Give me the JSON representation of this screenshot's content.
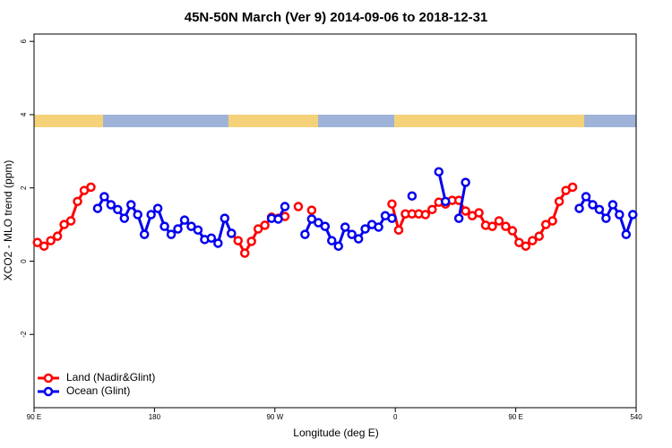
{
  "chart_data": {
    "type": "line",
    "title": "45N-50N March (Ver 9)   2014-09-06 to 2018-12-31",
    "xlabel": "Longitude (deg E)",
    "ylabel": "XCO2 - MLO trend (ppm)",
    "x": [
      92.5,
      97.5,
      102.5,
      107.5,
      112.5,
      117.5,
      122.5,
      127.5,
      132.5,
      137.5,
      142.5,
      147.5,
      152.5,
      157.5,
      162.5,
      167.5,
      172.5,
      177.5,
      182.5,
      187.5,
      192.5,
      197.5,
      202.5,
      207.5,
      212.5,
      217.5,
      222.5,
      227.5,
      232.5,
      237.5,
      242.5,
      247.5,
      252.5,
      257.5,
      262.5,
      267.5,
      272.5,
      277.5,
      282.5,
      287.5,
      292.5,
      297.5,
      302.5,
      307.5,
      312.5,
      317.5,
      322.5,
      327.5,
      332.5,
      337.5,
      342.5,
      347.5,
      352.5,
      357.5,
      362.5,
      367.5,
      372.5,
      377.5,
      382.5,
      387.5,
      392.5,
      397.5,
      402.5,
      407.5,
      412.5,
      417.5,
      422.5,
      427.5,
      432.5,
      437.5,
      442.5,
      447.5,
      452.5,
      457.5,
      462.5,
      467.5,
      472.5,
      477.5,
      482.5,
      487.5,
      492.5,
      497.5,
      502.5,
      507.5,
      512.5,
      517.5,
      522.5,
      527.5,
      532.5,
      537.5
    ],
    "series": [
      {
        "name": "Land (Nadir&Glint)",
        "color": "#ff0000",
        "values": [
          0.51,
          0.41,
          0.56,
          0.68,
          1.0,
          1.1,
          1.63,
          1.93,
          2.02,
          null,
          null,
          null,
          null,
          null,
          null,
          null,
          null,
          null,
          null,
          null,
          null,
          null,
          null,
          null,
          null,
          null,
          null,
          null,
          null,
          0.76,
          0.56,
          0.22,
          0.54,
          0.88,
          0.98,
          1.2,
          1.17,
          1.22,
          null,
          1.49,
          null,
          1.39,
          null,
          null,
          null,
          null,
          null,
          null,
          null,
          null,
          null,
          null,
          null,
          1.56,
          0.85,
          1.29,
          1.29,
          1.29,
          1.27,
          1.41,
          1.61,
          1.56,
          1.66,
          1.66,
          1.37,
          1.24,
          1.32,
          0.98,
          0.95,
          1.1,
          0.95,
          0.83,
          0.51,
          0.41,
          0.56,
          0.68,
          1.0,
          1.1,
          1.63,
          1.93,
          2.02,
          null,
          null,
          null,
          null,
          null,
          null,
          null,
          null,
          null
        ]
      },
      {
        "name": "Ocean (Glint)",
        "color": "#0000ee",
        "values": [
          null,
          null,
          null,
          null,
          null,
          null,
          null,
          null,
          null,
          1.44,
          1.76,
          1.54,
          1.41,
          1.17,
          1.54,
          1.27,
          0.73,
          1.27,
          1.44,
          0.95,
          0.73,
          0.88,
          1.12,
          0.95,
          0.85,
          0.59,
          0.63,
          0.49,
          1.17,
          0.76,
          null,
          null,
          null,
          null,
          null,
          1.17,
          1.15,
          1.49,
          null,
          null,
          0.73,
          1.15,
          1.05,
          0.95,
          0.56,
          0.41,
          0.93,
          0.73,
          0.61,
          0.88,
          1.0,
          0.93,
          1.24,
          1.17,
          null,
          null,
          1.78,
          null,
          null,
          null,
          2.44,
          1.63,
          null,
          1.17,
          2.15,
          null,
          null,
          null,
          null,
          null,
          null,
          null,
          null,
          null,
          null,
          null,
          null,
          null,
          null,
          null,
          null,
          1.44,
          1.76,
          1.54,
          1.41,
          1.17,
          1.54,
          1.27,
          0.73,
          1.27
        ]
      }
    ],
    "xlim": [
      90,
      540
    ],
    "xticks": [
      {
        "value": 90,
        "label": "90 E"
      },
      180,
      {
        "value": 270,
        "label": "90 W"
      },
      {
        "value": 360,
        "label": "0"
      },
      {
        "value": 450,
        "label": "90 E"
      },
      540
    ],
    "ylim": [
      -4,
      6.2
    ],
    "yticks": [
      -2,
      0,
      2,
      4,
      6
    ],
    "legend": "lower left"
  }
}
